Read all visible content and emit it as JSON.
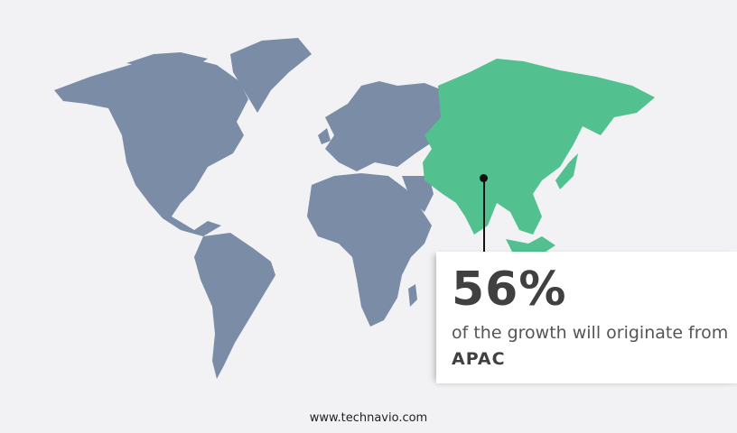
{
  "callout": {
    "percentage": "56%",
    "text_prefix": "of the growth will originate from",
    "region": "APAC"
  },
  "footer": {
    "website": "www.technavio.com"
  },
  "colors": {
    "background": "#f2f2f4",
    "other_regions": "#7a8ca6",
    "highlighted_region": "#52c08f"
  },
  "highlighted_region": "APAC"
}
